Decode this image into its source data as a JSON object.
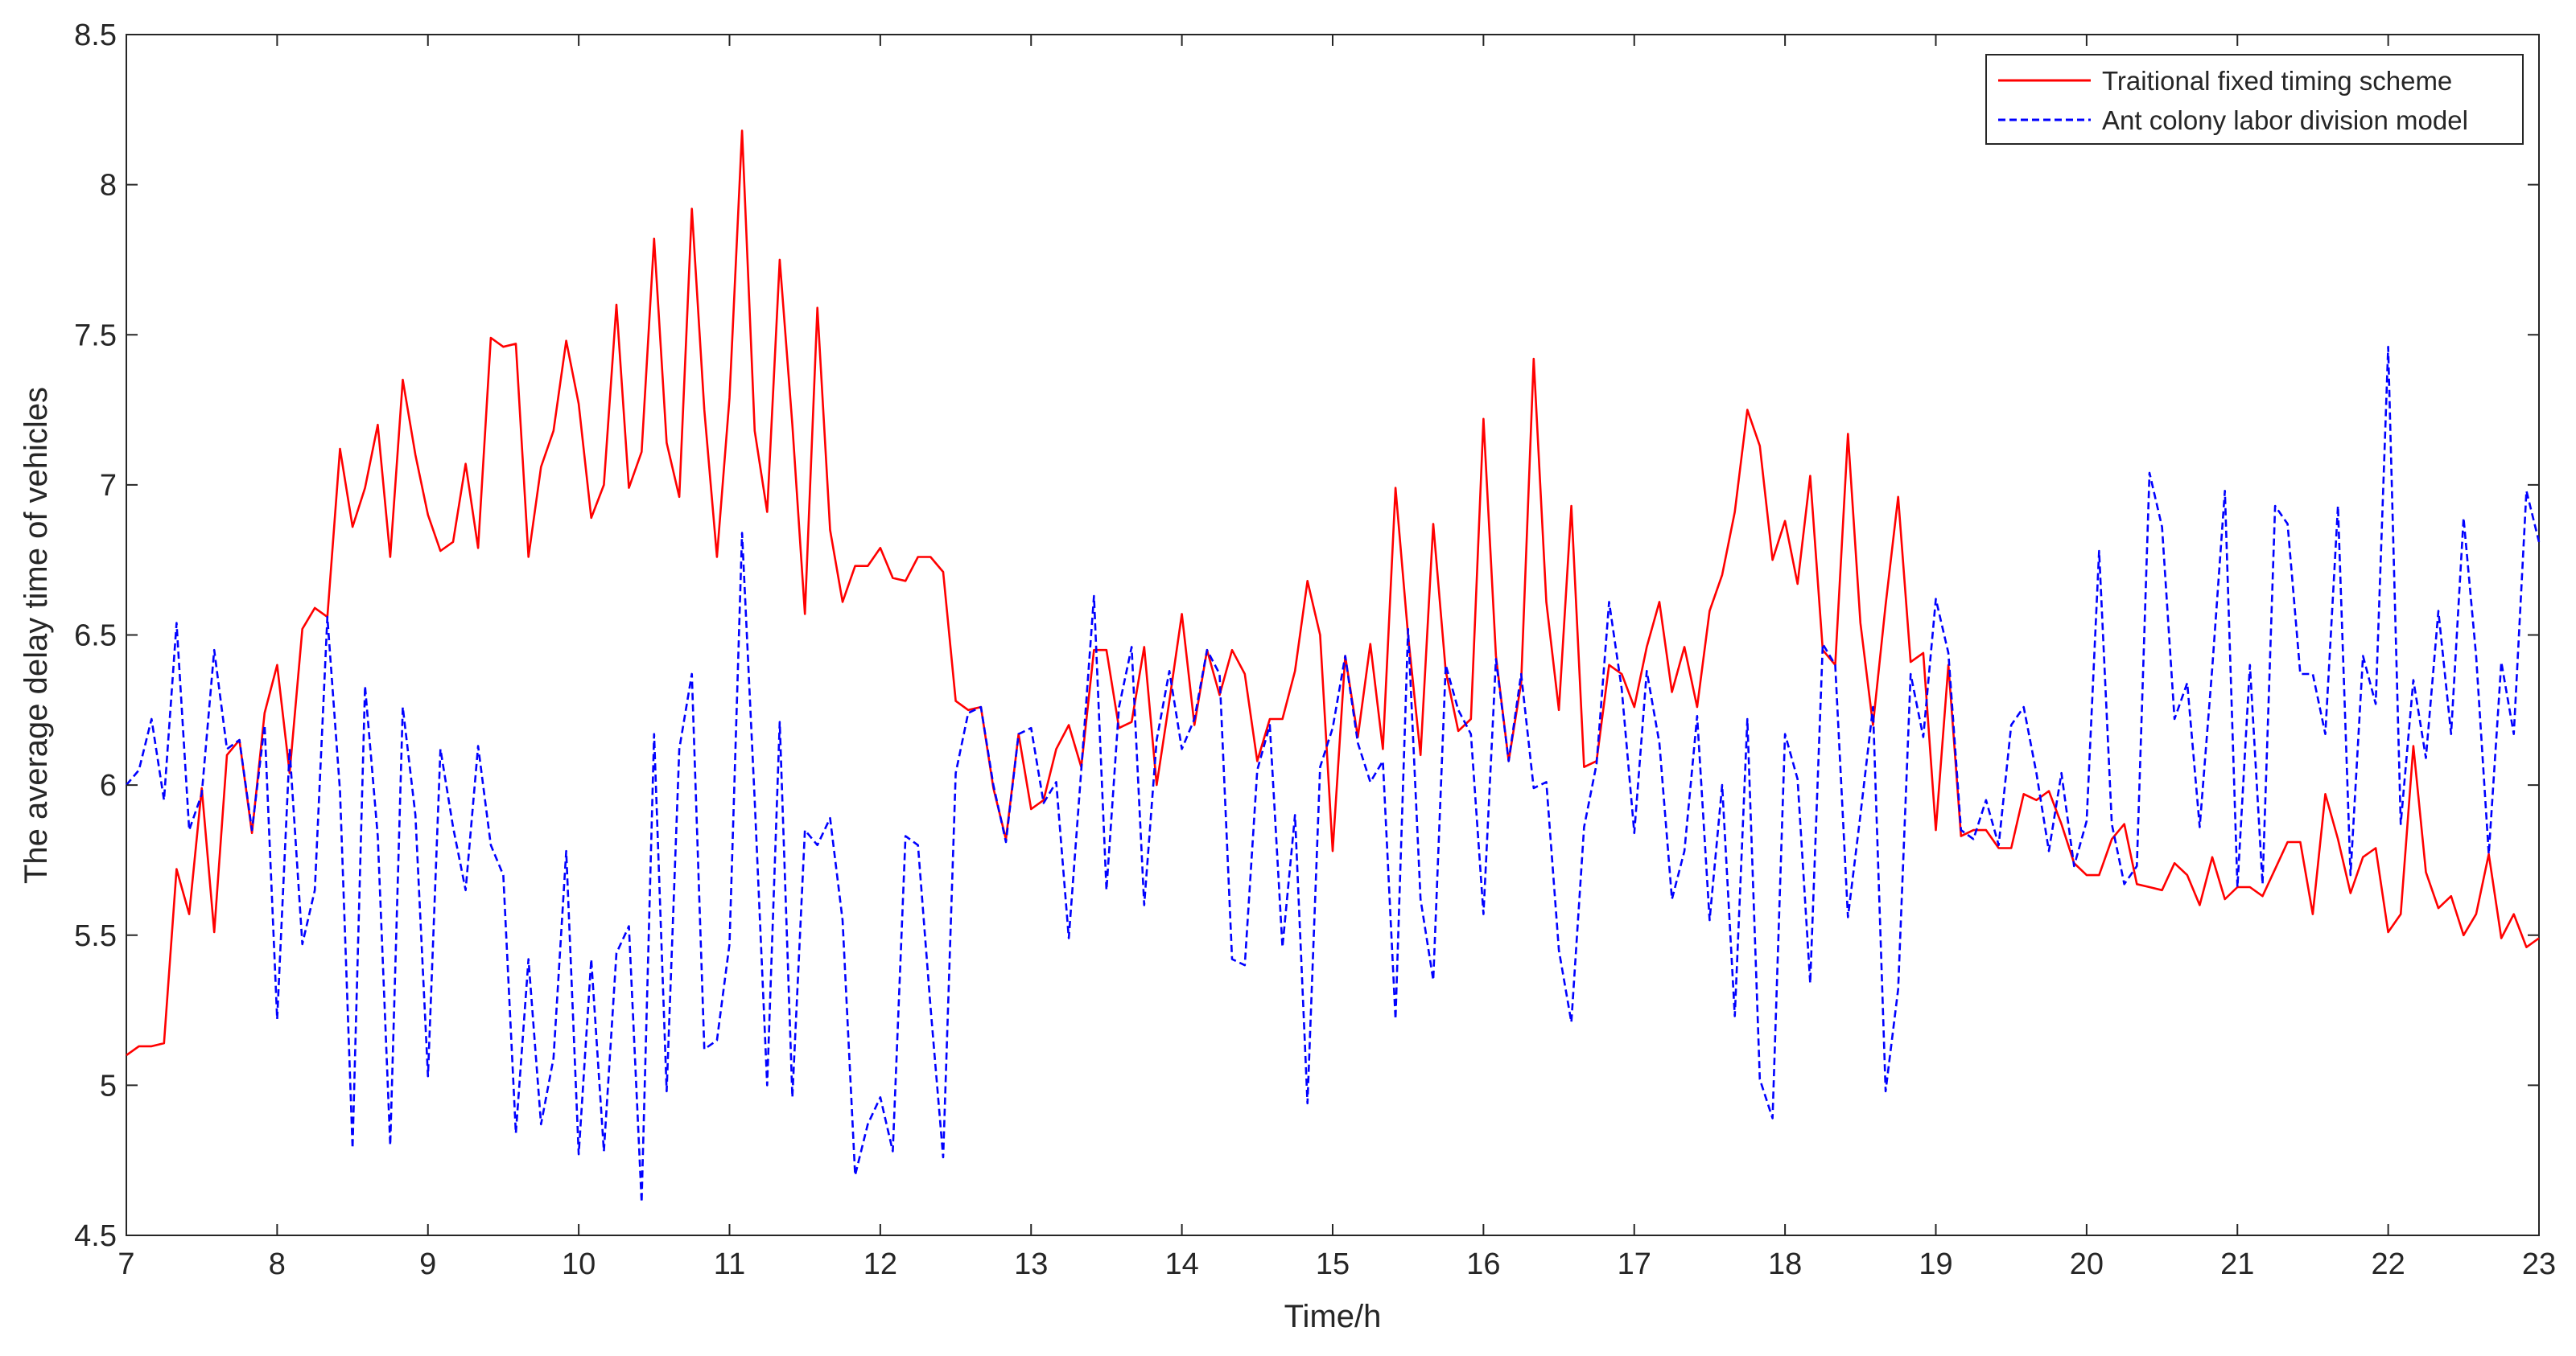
{
  "chart_data": {
    "type": "line",
    "title": "",
    "xlabel": "Time/h",
    "ylabel": "The average delay time of vehicles",
    "xlim": [
      7,
      23
    ],
    "ylim": [
      4.5,
      8.5
    ],
    "xticks": [
      7,
      8,
      9,
      10,
      11,
      12,
      13,
      14,
      15,
      16,
      17,
      18,
      19,
      20,
      21,
      22,
      23
    ],
    "yticks": [
      4.5,
      5,
      5.5,
      6,
      6.5,
      7,
      7.5,
      8,
      8.5
    ],
    "xtick_labels": [
      "7",
      "8",
      "9",
      "10",
      "11",
      "12",
      "13",
      "14",
      "15",
      "16",
      "17",
      "18",
      "19",
      "20",
      "21",
      "22",
      "23"
    ],
    "ytick_labels": [
      "4.5",
      "5",
      "5.5",
      "6",
      "6.5",
      "7",
      "7.5",
      "8",
      "8.5"
    ],
    "grid": false,
    "legend_position": "top-right",
    "series": [
      {
        "name": "Traitional fixed timing scheme",
        "color": "#ff0000",
        "style": "solid",
        "x": [
          7.0,
          7.083,
          7.167,
          7.25,
          7.333,
          7.417,
          7.5,
          7.583,
          7.667,
          7.75,
          7.833,
          7.917,
          8.0,
          8.083,
          8.167,
          8.25,
          8.333,
          8.417,
          8.5,
          8.583,
          8.667,
          8.75,
          8.833,
          8.917,
          9.0,
          9.083,
          9.167,
          9.25,
          9.333,
          9.417,
          9.5,
          9.583,
          9.667,
          9.75,
          9.833,
          9.917,
          10.0,
          10.083,
          10.167,
          10.25,
          10.333,
          10.417,
          10.5,
          10.583,
          10.667,
          10.75,
          10.833,
          10.917,
          11.0,
          11.083,
          11.167,
          11.25,
          11.333,
          11.417,
          11.5,
          11.583,
          11.667,
          11.75,
          11.833,
          11.917,
          12.0,
          12.083,
          12.167,
          12.25,
          12.333,
          12.417,
          12.5,
          12.583,
          12.667,
          12.75,
          12.833,
          12.917,
          13.0,
          13.083,
          13.167,
          13.25,
          13.333,
          13.417,
          13.5,
          13.583,
          13.667,
          13.75,
          13.833,
          13.917,
          14.0,
          14.083,
          14.167,
          14.25,
          14.333,
          14.417,
          14.5,
          14.583,
          14.667,
          14.75,
          14.833,
          14.917,
          15.0,
          15.083,
          15.167,
          15.25,
          15.333,
          15.417,
          15.5,
          15.583,
          15.667,
          15.75,
          15.833,
          15.917,
          16.0,
          16.083,
          16.167,
          16.25,
          16.333,
          16.417,
          16.5,
          16.583,
          16.667,
          16.75,
          16.833,
          16.917,
          17.0,
          17.083,
          17.167,
          17.25,
          17.333,
          17.417,
          17.5,
          17.583,
          17.667,
          17.75,
          17.833,
          17.917,
          18.0,
          18.083,
          18.167,
          18.25,
          18.333,
          18.417,
          18.5,
          18.583,
          18.667,
          18.75,
          18.833,
          18.917,
          19.0,
          19.083,
          19.167,
          19.25,
          19.333,
          19.417,
          19.5,
          19.583,
          19.667,
          19.75,
          19.833,
          19.917,
          20.0,
          20.083,
          20.167,
          20.25,
          20.333,
          20.417,
          20.5,
          20.583,
          20.667,
          20.75,
          20.833,
          20.917,
          21.0,
          21.083,
          21.167,
          21.25,
          21.333,
          21.417,
          21.5,
          21.583,
          21.667,
          21.75,
          21.833,
          21.917,
          22.0,
          22.083,
          22.167,
          22.25,
          22.333,
          22.417,
          22.5,
          22.583,
          22.667,
          22.75,
          22.833,
          22.917,
          23.0
        ],
        "y": [
          5.1,
          5.13,
          5.13,
          5.14,
          5.72,
          5.57,
          5.99,
          5.51,
          6.1,
          6.15,
          5.84,
          6.24,
          6.4,
          6.04,
          6.52,
          6.59,
          6.56,
          7.12,
          6.86,
          6.99,
          7.2,
          6.76,
          7.35,
          7.1,
          6.9,
          6.78,
          6.81,
          7.07,
          6.79,
          7.49,
          7.46,
          7.47,
          6.76,
          7.06,
          7.18,
          7.48,
          7.27,
          6.89,
          7.0,
          7.6,
          6.99,
          7.11,
          7.82,
          7.14,
          6.96,
          7.92,
          7.25,
          6.76,
          7.29,
          8.18,
          7.18,
          6.91,
          7.75,
          7.2,
          6.57,
          7.59,
          6.85,
          6.61,
          6.73,
          6.73,
          6.79,
          6.69,
          6.68,
          6.76,
          6.76,
          6.71,
          6.28,
          6.25,
          6.26,
          5.99,
          5.82,
          6.17,
          5.92,
          5.95,
          6.12,
          6.2,
          6.06,
          6.45,
          6.45,
          6.19,
          6.21,
          6.46,
          6.0,
          6.28,
          6.57,
          6.2,
          6.45,
          6.3,
          6.45,
          6.37,
          6.08,
          6.22,
          6.22,
          6.38,
          6.68,
          6.5,
          5.78,
          6.43,
          6.16,
          6.47,
          6.12,
          6.99,
          6.5,
          6.1,
          6.87,
          6.38,
          6.18,
          6.22,
          7.22,
          6.43,
          6.08,
          6.34,
          7.42,
          6.61,
          6.25,
          6.93,
          6.06,
          6.08,
          6.4,
          6.37,
          6.26,
          6.46,
          6.61,
          6.31,
          6.46,
          6.26,
          6.58,
          6.7,
          6.91,
          7.25,
          7.13,
          6.75,
          6.88,
          6.67,
          7.03,
          6.45,
          6.4,
          7.17,
          6.54,
          6.2,
          6.6,
          6.96,
          6.41,
          6.44,
          5.85,
          6.4,
          5.83,
          5.85,
          5.85,
          5.79,
          5.79,
          5.97,
          5.95,
          5.98,
          5.87,
          5.74,
          5.7,
          5.7,
          5.82,
          5.87,
          5.67,
          5.66,
          5.65,
          5.74,
          5.7,
          5.6,
          5.76,
          5.62,
          5.66,
          5.66,
          5.63,
          5.72,
          5.81,
          5.81,
          5.57,
          5.97,
          5.82,
          5.64,
          5.76,
          5.79,
          5.51,
          5.57,
          6.13,
          5.71,
          5.59,
          5.63,
          5.5,
          5.57,
          5.77,
          5.49,
          5.57,
          5.46,
          5.49
        ]
      },
      {
        "name": "Ant colony labor division model",
        "color": "#0000ff",
        "style": "dashed",
        "x": [
          7.0,
          7.083,
          7.167,
          7.25,
          7.333,
          7.417,
          7.5,
          7.583,
          7.667,
          7.75,
          7.833,
          7.917,
          8.0,
          8.083,
          8.167,
          8.25,
          8.333,
          8.417,
          8.5,
          8.583,
          8.667,
          8.75,
          8.833,
          8.917,
          9.0,
          9.083,
          9.167,
          9.25,
          9.333,
          9.417,
          9.5,
          9.583,
          9.667,
          9.75,
          9.833,
          9.917,
          10.0,
          10.083,
          10.167,
          10.25,
          10.333,
          10.417,
          10.5,
          10.583,
          10.667,
          10.75,
          10.833,
          10.917,
          11.0,
          11.083,
          11.167,
          11.25,
          11.333,
          11.417,
          11.5,
          11.583,
          11.667,
          11.75,
          11.833,
          11.917,
          12.0,
          12.083,
          12.167,
          12.25,
          12.333,
          12.417,
          12.5,
          12.583,
          12.667,
          12.75,
          12.833,
          12.917,
          13.0,
          13.083,
          13.167,
          13.25,
          13.333,
          13.417,
          13.5,
          13.583,
          13.667,
          13.75,
          13.833,
          13.917,
          14.0,
          14.083,
          14.167,
          14.25,
          14.333,
          14.417,
          14.5,
          14.583,
          14.667,
          14.75,
          14.833,
          14.917,
          15.0,
          15.083,
          15.167,
          15.25,
          15.333,
          15.417,
          15.5,
          15.583,
          15.667,
          15.75,
          15.833,
          15.917,
          16.0,
          16.083,
          16.167,
          16.25,
          16.333,
          16.417,
          16.5,
          16.583,
          16.667,
          16.75,
          16.833,
          16.917,
          17.0,
          17.083,
          17.167,
          17.25,
          17.333,
          17.417,
          17.5,
          17.583,
          17.667,
          17.75,
          17.833,
          17.917,
          18.0,
          18.083,
          18.167,
          18.25,
          18.333,
          18.417,
          18.5,
          18.583,
          18.667,
          18.75,
          18.833,
          18.917,
          19.0,
          19.083,
          19.167,
          19.25,
          19.333,
          19.417,
          19.5,
          19.583,
          19.667,
          19.75,
          19.833,
          19.917,
          20.0,
          20.083,
          20.167,
          20.25,
          20.333,
          20.417,
          20.5,
          20.583,
          20.667,
          20.75,
          20.833,
          20.917,
          21.0,
          21.083,
          21.167,
          21.25,
          21.333,
          21.417,
          21.5,
          21.583,
          21.667,
          21.75,
          21.833,
          21.917,
          22.0,
          22.083,
          22.167,
          22.25,
          22.333,
          22.417,
          22.5,
          22.583,
          22.667,
          22.75,
          22.833,
          22.917,
          23.0
        ],
        "y": [
          6.0,
          6.05,
          6.22,
          5.95,
          6.54,
          5.85,
          5.97,
          6.45,
          6.12,
          6.15,
          5.85,
          6.2,
          5.22,
          6.12,
          5.47,
          5.65,
          6.56,
          5.98,
          4.79,
          6.33,
          5.83,
          4.8,
          6.26,
          5.9,
          5.03,
          6.12,
          5.86,
          5.65,
          6.13,
          5.8,
          5.7,
          4.84,
          5.42,
          4.87,
          5.09,
          5.78,
          4.77,
          5.42,
          4.78,
          5.44,
          5.53,
          4.61,
          6.17,
          4.98,
          6.12,
          6.37,
          5.12,
          5.15,
          5.47,
          6.84,
          5.95,
          5.0,
          6.21,
          4.96,
          5.85,
          5.8,
          5.89,
          5.55,
          4.7,
          4.87,
          4.96,
          4.78,
          5.83,
          5.8,
          5.26,
          4.76,
          6.04,
          6.24,
          6.26,
          6.0,
          5.81,
          6.17,
          6.19,
          5.94,
          6.01,
          5.49,
          6.05,
          6.63,
          5.65,
          6.26,
          6.46,
          5.6,
          6.15,
          6.38,
          6.12,
          6.22,
          6.45,
          6.37,
          5.42,
          5.4,
          6.05,
          6.2,
          5.46,
          5.9,
          4.94,
          6.06,
          6.19,
          6.43,
          6.14,
          6.01,
          6.08,
          5.22,
          6.52,
          5.62,
          5.35,
          6.4,
          6.25,
          6.17,
          5.57,
          6.42,
          6.08,
          6.37,
          5.99,
          6.01,
          5.45,
          5.21,
          5.86,
          6.07,
          6.61,
          6.32,
          5.84,
          6.38,
          6.14,
          5.62,
          5.78,
          6.23,
          5.55,
          6.0,
          5.23,
          6.22,
          5.02,
          4.89,
          6.17,
          6.02,
          5.34,
          6.47,
          6.4,
          5.56,
          5.9,
          6.26,
          4.98,
          5.32,
          6.37,
          6.16,
          6.62,
          6.44,
          5.85,
          5.82,
          5.95,
          5.8,
          6.2,
          6.26,
          6.04,
          5.78,
          6.04,
          5.73,
          5.88,
          6.78,
          5.87,
          5.67,
          5.73,
          7.04,
          6.86,
          6.22,
          6.34,
          5.86,
          6.39,
          6.98,
          5.66,
          6.4,
          5.67,
          6.93,
          6.87,
          6.37,
          6.37,
          6.17,
          6.93,
          5.7,
          6.43,
          6.27,
          7.46,
          5.87,
          6.35,
          6.09,
          6.58,
          6.17,
          6.89,
          6.43,
          5.77,
          6.41,
          6.17,
          6.98,
          6.81
        ]
      }
    ]
  }
}
